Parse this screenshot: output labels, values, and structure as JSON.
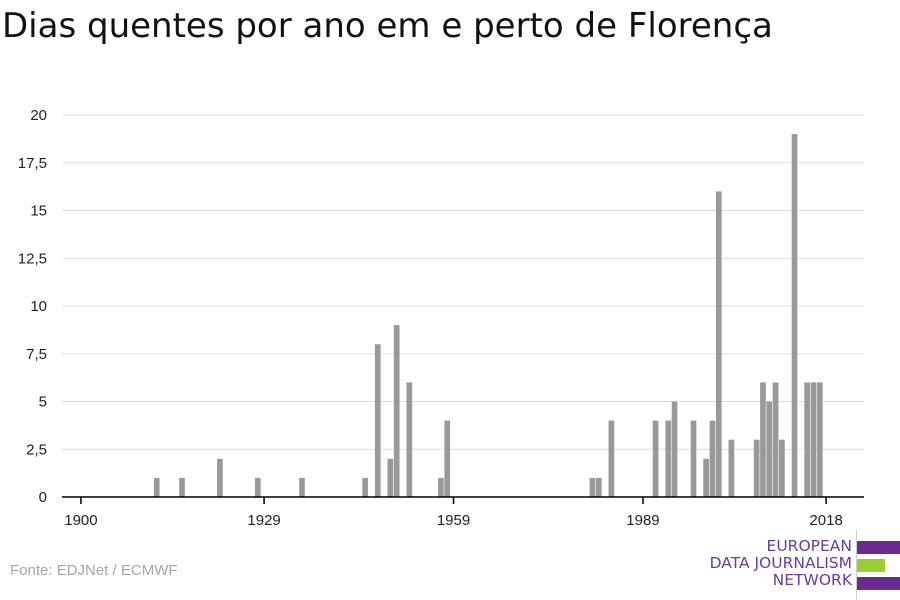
{
  "title": "Dias quentes por ano em e perto de Florença",
  "source": "Fonte: EDJNet / ECMWF",
  "logo": {
    "lines": [
      "EUROPEAN",
      "DATA JOURNALISM",
      "NETWORK"
    ]
  },
  "colors": {
    "bar": "#999999",
    "axis": "#000000",
    "grid": "#dddddd",
    "brand_purple": "#6a2b8c",
    "brand_green": "#9acd32"
  },
  "chart_data": {
    "type": "bar",
    "title": "Dias quentes por ano em e perto de Florença",
    "xlabel": "",
    "ylabel": "",
    "ylim": [
      0,
      20
    ],
    "yticks": [
      0,
      2.5,
      5,
      7.5,
      10,
      12.5,
      15,
      17.5,
      20
    ],
    "ytick_labels": [
      "0",
      "2,5",
      "5",
      "7,5",
      "10",
      "12,5",
      "15",
      "17,5",
      "20"
    ],
    "xlim": [
      1897,
      2024
    ],
    "xticks": [
      1900,
      1929,
      1959,
      1989,
      2018
    ],
    "grid": true,
    "x": [
      1912,
      1916,
      1922,
      1928,
      1935,
      1945,
      1947,
      1949,
      1950,
      1952,
      1957,
      1958,
      1981,
      1982,
      1984,
      1991,
      1993,
      1994,
      1997,
      1999,
      2000,
      2001,
      2003,
      2007,
      2008,
      2009,
      2010,
      2011,
      2013,
      2015,
      2016,
      2017
    ],
    "values": [
      1,
      1,
      2,
      1,
      1,
      1,
      8,
      2,
      9,
      6,
      1,
      4,
      1,
      1,
      4,
      4,
      4,
      5,
      4,
      2,
      4,
      16,
      3,
      3,
      6,
      5,
      6,
      3,
      19,
      6,
      6,
      6
    ]
  }
}
